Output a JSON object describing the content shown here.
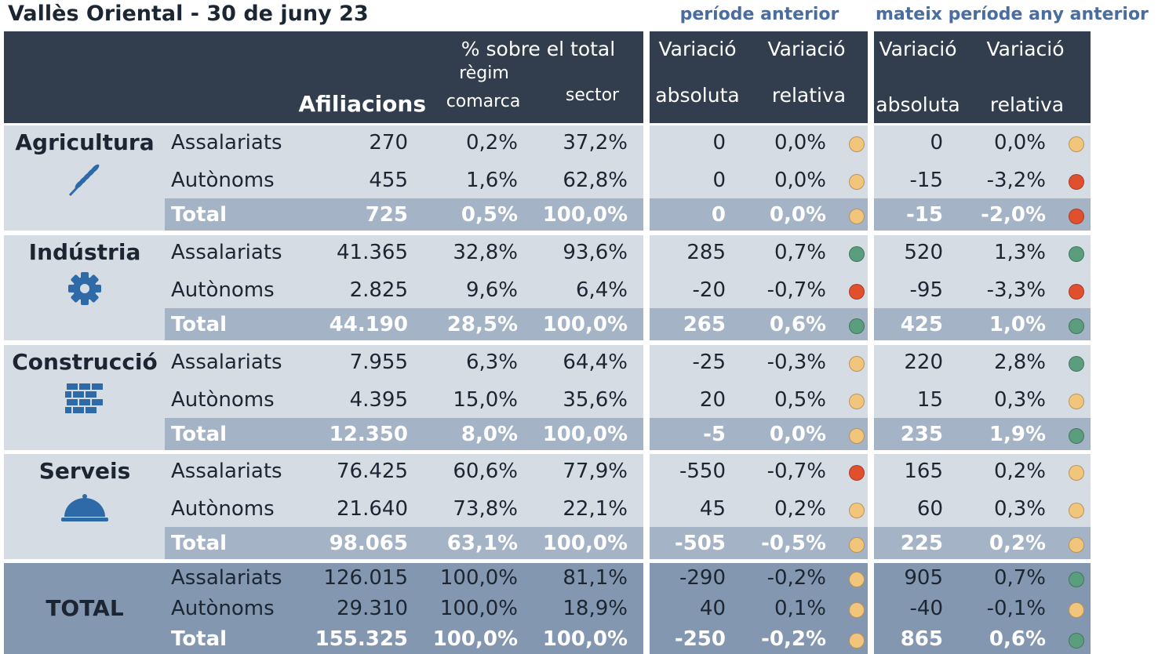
{
  "title": "Vallès Oriental - 30 de juny 23",
  "group_headers": [
    "període anterior",
    "mateix període any anterior"
  ],
  "header": {
    "pct_total": "% sobre el total",
    "regim": "règim",
    "afiliacions": "Afiliacions",
    "comarca": "comarca",
    "sector": "sector",
    "var": [
      "Variació",
      "Variació",
      "Variació",
      "Variació"
    ],
    "sub": [
      "absoluta",
      "relativa",
      "absoluta",
      "relativa"
    ]
  },
  "sectors": [
    {
      "name": "Agricultura",
      "rows": [
        {
          "label": "Assalariats",
          "cells": [
            "270",
            "0,2%",
            "37,2%",
            "0",
            "0,0%",
            "0",
            "0,0%"
          ],
          "dots": [
            "#f2c57c",
            "#f2c57c"
          ]
        },
        {
          "label": "Autònoms",
          "cells": [
            "455",
            "1,6%",
            "62,8%",
            "0",
            "0,0%",
            "-15",
            "-3,2%"
          ],
          "dots": [
            "#f2c57c",
            "#e0502e"
          ]
        },
        {
          "label": "Total",
          "cells": [
            "725",
            "0,5%",
            "100,0%",
            "0",
            "0,0%",
            "-15",
            "-2,0%"
          ],
          "dots": [
            "#f2c57c",
            "#e0502e"
          ]
        }
      ]
    },
    {
      "name": "Indústria",
      "rows": [
        {
          "label": "Assalariats",
          "cells": [
            "41.365",
            "32,8%",
            "93,6%",
            "285",
            "0,7%",
            "520",
            "1,3%"
          ],
          "dots": [
            "#5a9e7e",
            "#5a9e7e"
          ]
        },
        {
          "label": "Autònoms",
          "cells": [
            "2.825",
            "9,6%",
            "6,4%",
            "-20",
            "-0,7%",
            "-95",
            "-3,3%"
          ],
          "dots": [
            "#e0502e",
            "#e0502e"
          ]
        },
        {
          "label": "Total",
          "cells": [
            "44.190",
            "28,5%",
            "100,0%",
            "265",
            "0,6%",
            "425",
            "1,0%"
          ],
          "dots": [
            "#5a9e7e",
            "#5a9e7e"
          ]
        }
      ]
    },
    {
      "name": "Construcció",
      "rows": [
        {
          "label": "Assalariats",
          "cells": [
            "7.955",
            "6,3%",
            "64,4%",
            "-25",
            "-0,3%",
            "220",
            "2,8%"
          ],
          "dots": [
            "#f2c57c",
            "#5a9e7e"
          ]
        },
        {
          "label": "Autònoms",
          "cells": [
            "4.395",
            "15,0%",
            "35,6%",
            "20",
            "0,5%",
            "15",
            "0,3%"
          ],
          "dots": [
            "#f2c57c",
            "#f2c57c"
          ]
        },
        {
          "label": "Total",
          "cells": [
            "12.350",
            "8,0%",
            "100,0%",
            "-5",
            "0,0%",
            "235",
            "1,9%"
          ],
          "dots": [
            "#f2c57c",
            "#5a9e7e"
          ]
        }
      ]
    },
    {
      "name": "Serveis",
      "rows": [
        {
          "label": "Assalariats",
          "cells": [
            "76.425",
            "60,6%",
            "77,9%",
            "-550",
            "-0,7%",
            "165",
            "0,2%"
          ],
          "dots": [
            "#e0502e",
            "#f2c57c"
          ]
        },
        {
          "label": "Autònoms",
          "cells": [
            "21.640",
            "73,8%",
            "22,1%",
            "45",
            "0,2%",
            "60",
            "0,3%"
          ],
          "dots": [
            "#f2c57c",
            "#f2c57c"
          ]
        },
        {
          "label": "Total",
          "cells": [
            "98.065",
            "63,1%",
            "100,0%",
            "-505",
            "-0,5%",
            "225",
            "0,2%"
          ],
          "dots": [
            "#f2c57c",
            "#f2c57c"
          ]
        }
      ]
    },
    {
      "name": "TOTAL",
      "rows": [
        {
          "label": "Assalariats",
          "cells": [
            "126.015",
            "100,0%",
            "81,1%",
            "-290",
            "-0,2%",
            "905",
            "0,7%"
          ],
          "dots": [
            "#f2c57c",
            "#5a9e7e"
          ]
        },
        {
          "label": "Autònoms",
          "cells": [
            "29.310",
            "100,0%",
            "18,9%",
            "40",
            "0,1%",
            "-40",
            "-0,1%"
          ],
          "dots": [
            "#f2c57c",
            "#f2c57c"
          ]
        },
        {
          "label": "Total",
          "cells": [
            "155.325",
            "100,0%",
            "100,0%",
            "-250",
            "-0,2%",
            "865",
            "0,6%"
          ],
          "dots": [
            "#f2c57c",
            "#5a9e7e"
          ]
        }
      ]
    }
  ]
}
